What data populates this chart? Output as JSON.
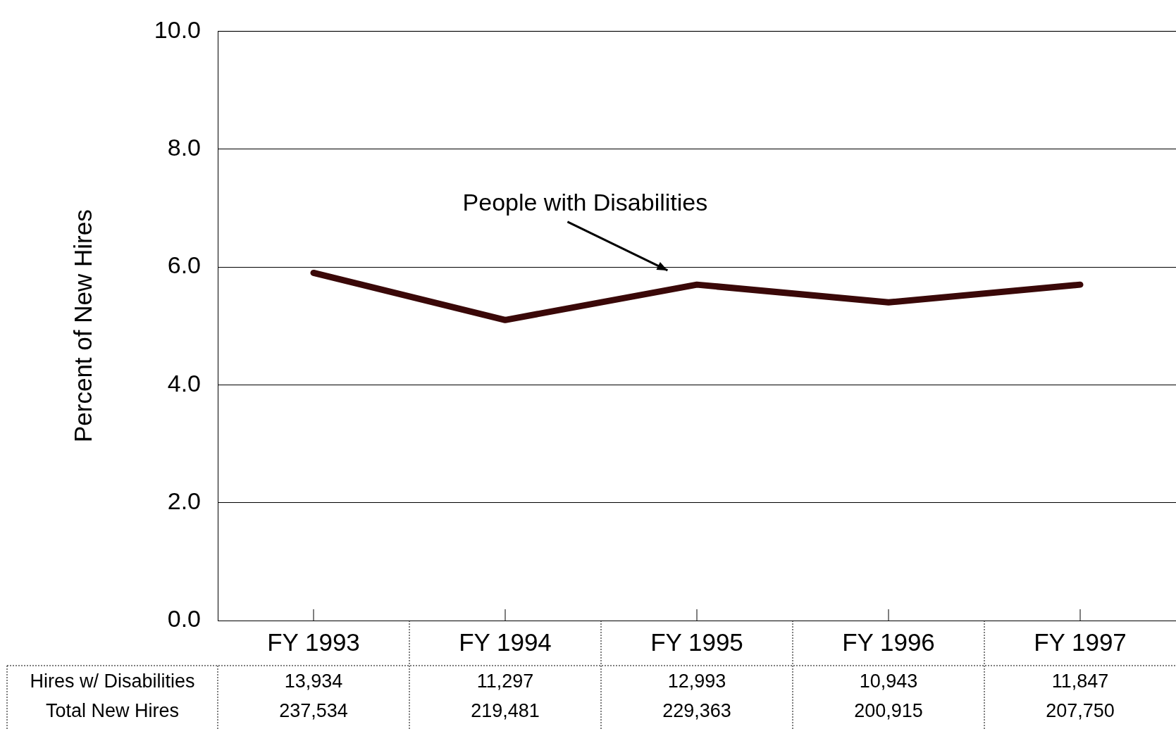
{
  "chart_data": {
    "type": "line",
    "ylabel": "Percent of New Hires",
    "categories": [
      "FY 1993",
      "FY 1994",
      "FY 1995",
      "FY 1996",
      "FY 1997"
    ],
    "series": [
      {
        "color": "#3a0808",
        "values": [
          5.9,
          5.1,
          5.7,
          5.4,
          5.7
        ]
      }
    ],
    "ylim": [
      0,
      10
    ],
    "yticks": [
      {
        "value": 0,
        "label": "0.0"
      },
      {
        "value": 2,
        "label": "2.0"
      },
      {
        "value": 4,
        "label": "4.0"
      },
      {
        "value": 6,
        "label": "6.0"
      },
      {
        "value": 8,
        "label": "8.0"
      },
      {
        "value": 10,
        "label": "10.0"
      }
    ],
    "grid": "y",
    "legend": false,
    "marker": "none",
    "line_style": "solid",
    "annotations": [
      "People with Disabilities",
      "Hires w/ Disabilities",
      "13,934",
      "11,297",
      "12,993",
      "10,943",
      "11,847",
      "Total New Hires",
      "237,534",
      "219,481",
      "229,363",
      "200,915",
      "207,750"
    ]
  }
}
